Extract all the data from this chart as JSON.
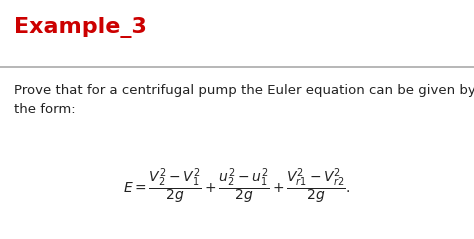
{
  "title": "Example_3",
  "title_color": "#cc0000",
  "title_fontsize": 16,
  "body_text": "Prove that for a centrifugal pump the Euler equation can be given by\nthe form:",
  "body_fontsize": 9.5,
  "equation": "$E = \\dfrac{V_2^2 - V_1^2}{2g} + \\dfrac{u_2^2 - u_1^2}{2g} + \\dfrac{V_{r1}^2 - V_{r2}^2}{2g}.$",
  "equation_fontsize": 10,
  "bg_color": "#ffffff",
  "line_color": "#aaaaaa",
  "text_color": "#222222",
  "figwidth": 4.74,
  "figheight": 2.39,
  "dpi": 100
}
